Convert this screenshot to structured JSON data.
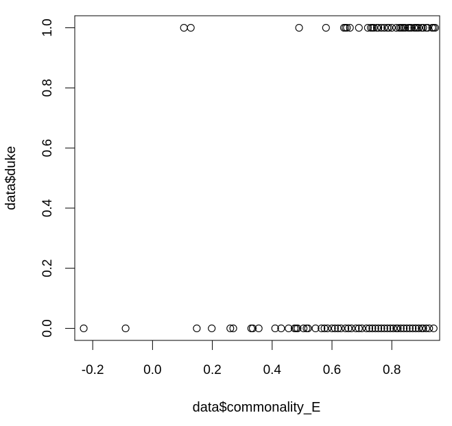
{
  "chart_data": {
    "type": "scatter",
    "title": "",
    "xlabel": "data$commonality_E",
    "ylabel": "data$duke",
    "xlim": [
      -0.26,
      0.96
    ],
    "ylim": [
      -0.04,
      1.04
    ],
    "x_ticks": [
      -0.2,
      0.0,
      0.2,
      0.4,
      0.6,
      0.8
    ],
    "x_tick_labels": [
      "-0.2",
      "0.0",
      "0.2",
      "0.4",
      "0.6",
      "0.8"
    ],
    "y_ticks": [
      0.0,
      0.2,
      0.4,
      0.6,
      0.8,
      1.0
    ],
    "y_tick_labels": [
      "0.0",
      "0.2",
      "0.4",
      "0.6",
      "0.8",
      "1.0"
    ],
    "grid": false,
    "legend": "none",
    "marker": "open-circle",
    "series": [
      {
        "points": [
          [
            0.105,
            1
          ],
          [
            0.128,
            1
          ],
          [
            0.49,
            1
          ],
          [
            0.58,
            1
          ],
          [
            0.64,
            1
          ],
          [
            0.645,
            1
          ],
          [
            0.65,
            1
          ],
          [
            0.66,
            1
          ],
          [
            0.69,
            1
          ],
          [
            0.72,
            1
          ],
          [
            0.73,
            1
          ],
          [
            0.735,
            1
          ],
          [
            0.74,
            1
          ],
          [
            0.75,
            1
          ],
          [
            0.755,
            1
          ],
          [
            0.765,
            1
          ],
          [
            0.775,
            1
          ],
          [
            0.785,
            1
          ],
          [
            0.79,
            1
          ],
          [
            0.8,
            1
          ],
          [
            0.815,
            1
          ],
          [
            0.825,
            1
          ],
          [
            0.83,
            1
          ],
          [
            0.835,
            1
          ],
          [
            0.84,
            1
          ],
          [
            0.845,
            1
          ],
          [
            0.855,
            1
          ],
          [
            0.86,
            1
          ],
          [
            0.865,
            1
          ],
          [
            0.875,
            1
          ],
          [
            0.88,
            1
          ],
          [
            0.885,
            1
          ],
          [
            0.89,
            1
          ],
          [
            0.9,
            1
          ],
          [
            0.905,
            1
          ],
          [
            0.915,
            1
          ],
          [
            0.92,
            1
          ],
          [
            0.935,
            1
          ],
          [
            0.94,
            1
          ],
          [
            0.945,
            1
          ],
          [
            -0.23,
            0
          ],
          [
            -0.09,
            0
          ],
          [
            0.148,
            0
          ],
          [
            0.198,
            0
          ],
          [
            0.26,
            0
          ],
          [
            0.27,
            0
          ],
          [
            0.33,
            0
          ],
          [
            0.335,
            0
          ],
          [
            0.355,
            0
          ],
          [
            0.41,
            0
          ],
          [
            0.43,
            0
          ],
          [
            0.455,
            0
          ],
          [
            0.475,
            0
          ],
          [
            0.48,
            0
          ],
          [
            0.485,
            0
          ],
          [
            0.505,
            0
          ],
          [
            0.515,
            0
          ],
          [
            0.52,
            0
          ],
          [
            0.545,
            0
          ],
          [
            0.565,
            0
          ],
          [
            0.575,
            0
          ],
          [
            0.585,
            0
          ],
          [
            0.6,
            0
          ],
          [
            0.61,
            0
          ],
          [
            0.62,
            0
          ],
          [
            0.63,
            0
          ],
          [
            0.645,
            0
          ],
          [
            0.655,
            0
          ],
          [
            0.665,
            0
          ],
          [
            0.68,
            0
          ],
          [
            0.69,
            0
          ],
          [
            0.7,
            0
          ],
          [
            0.715,
            0
          ],
          [
            0.725,
            0
          ],
          [
            0.735,
            0
          ],
          [
            0.745,
            0
          ],
          [
            0.755,
            0
          ],
          [
            0.765,
            0
          ],
          [
            0.775,
            0
          ],
          [
            0.785,
            0
          ],
          [
            0.795,
            0
          ],
          [
            0.805,
            0
          ],
          [
            0.815,
            0
          ],
          [
            0.82,
            0
          ],
          [
            0.83,
            0
          ],
          [
            0.84,
            0
          ],
          [
            0.85,
            0
          ],
          [
            0.86,
            0
          ],
          [
            0.87,
            0
          ],
          [
            0.88,
            0
          ],
          [
            0.89,
            0
          ],
          [
            0.9,
            0
          ],
          [
            0.905,
            0
          ],
          [
            0.915,
            0
          ],
          [
            0.925,
            0
          ],
          [
            0.94,
            0
          ]
        ]
      }
    ]
  }
}
